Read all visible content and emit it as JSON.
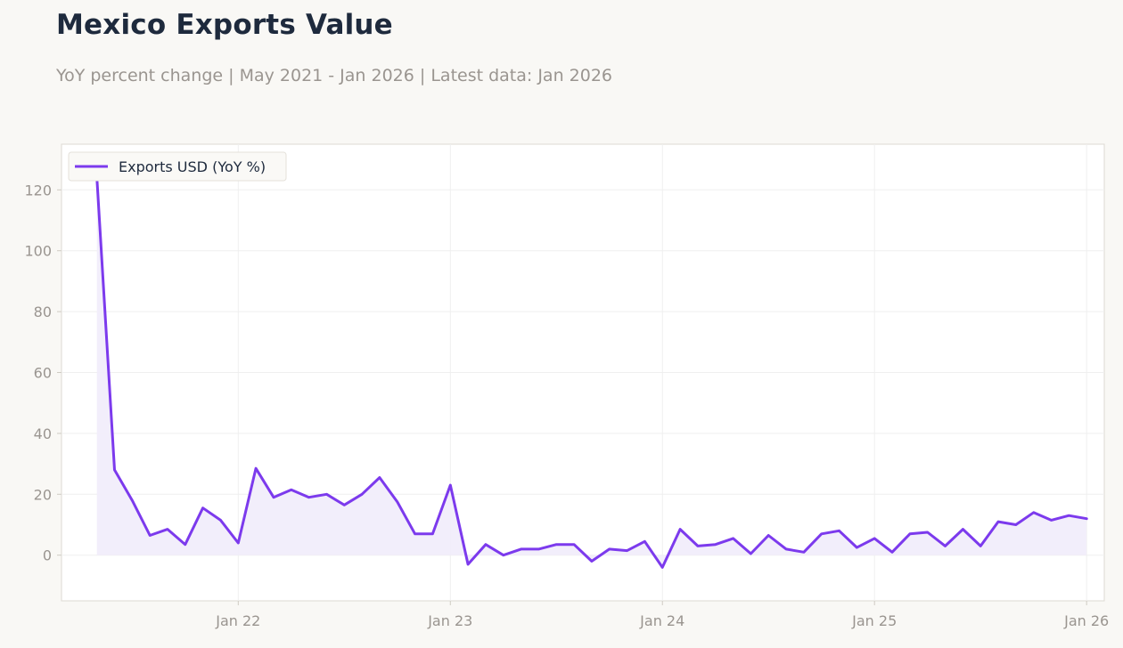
{
  "header": {
    "title": "Mexico Exports Value",
    "subtitle": "YoY percent change | May 2021 - Jan 2026 | Latest data: Jan 2026"
  },
  "colors": {
    "line": "#7c3aed",
    "fill": "#f1ecfb",
    "background": "#f9f8f5",
    "plot_background": "#ffffff",
    "grid": "#efefef",
    "tick_text": "#9a9590",
    "title_text": "#1e2a3d"
  },
  "chart_data": {
    "type": "area",
    "title": "Mexico Exports Value",
    "subtitle": "YoY percent change | May 2021 - Jan 2026 | Latest data: Jan 2026",
    "xlabel": "",
    "ylabel": "",
    "ylim": [
      -15,
      135
    ],
    "yticks": [
      0,
      20,
      40,
      60,
      80,
      100,
      120
    ],
    "xlim": [
      "2021-03",
      "2026-02"
    ],
    "xticks": [
      {
        "date": "2022-01",
        "label": "Jan 22"
      },
      {
        "date": "2023-01",
        "label": "Jan 23"
      },
      {
        "date": "2024-01",
        "label": "Jan 24"
      },
      {
        "date": "2025-01",
        "label": "Jan 25"
      },
      {
        "date": "2026-01",
        "label": "Jan 26"
      }
    ],
    "grid": true,
    "legend_position": "top-left",
    "x": [
      "2021-05",
      "2021-06",
      "2021-07",
      "2021-08",
      "2021-09",
      "2021-10",
      "2021-11",
      "2021-12",
      "2022-01",
      "2022-02",
      "2022-03",
      "2022-04",
      "2022-05",
      "2022-06",
      "2022-07",
      "2022-08",
      "2022-09",
      "2022-10",
      "2022-11",
      "2022-12",
      "2023-01",
      "2023-02",
      "2023-03",
      "2023-04",
      "2023-05",
      "2023-06",
      "2023-07",
      "2023-08",
      "2023-09",
      "2023-10",
      "2023-11",
      "2023-12",
      "2024-01",
      "2024-02",
      "2024-03",
      "2024-04",
      "2024-05",
      "2024-06",
      "2024-07",
      "2024-08",
      "2024-09",
      "2024-10",
      "2024-11",
      "2024-12",
      "2025-01",
      "2025-02",
      "2025-03",
      "2025-04",
      "2025-05",
      "2025-06",
      "2025-07",
      "2025-08",
      "2025-09",
      "2025-10",
      "2025-11",
      "2025-12",
      "2026-01"
    ],
    "series": [
      {
        "name": "Exports USD (YoY %)",
        "values": [
          124.0,
          28.0,
          18.0,
          6.5,
          8.5,
          3.5,
          15.5,
          11.5,
          4.0,
          28.5,
          19.0,
          21.5,
          19.0,
          20.0,
          16.5,
          20.0,
          25.5,
          17.5,
          7.0,
          7.0,
          23.0,
          -3.0,
          3.5,
          0.0,
          2.0,
          2.0,
          3.5,
          3.5,
          -2.0,
          2.0,
          1.5,
          4.5,
          -4.0,
          8.5,
          3.0,
          3.5,
          5.5,
          0.5,
          6.5,
          2.0,
          1.0,
          7.0,
          8.0,
          2.5,
          5.5,
          1.0,
          7.0,
          7.5,
          3.0,
          8.5,
          3.0,
          11.0,
          10.0,
          14.0,
          11.5,
          13.0,
          12.0
        ]
      }
    ]
  }
}
